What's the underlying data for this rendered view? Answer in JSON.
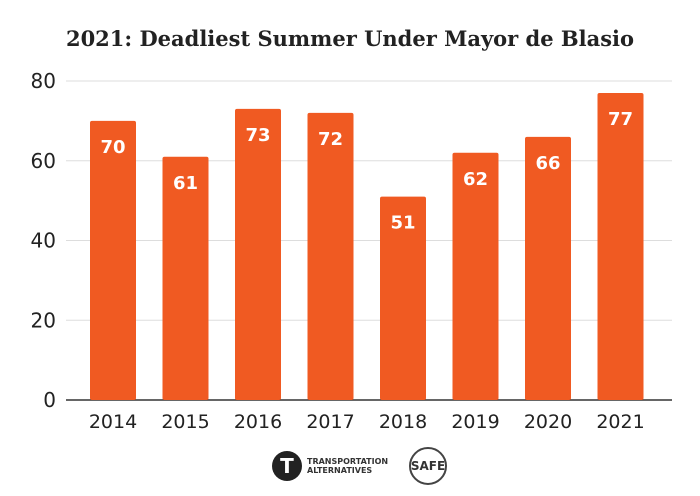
{
  "chart_data": {
    "type": "bar",
    "title": "2021: Deadliest Summer Under Mayor de Blasio",
    "categories": [
      "2014",
      "2015",
      "2016",
      "2017",
      "2018",
      "2019",
      "2020",
      "2021"
    ],
    "values": [
      70,
      61,
      73,
      72,
      51,
      62,
      66,
      77
    ],
    "ylim": [
      0,
      80
    ],
    "yticks": [
      0,
      20,
      40,
      60,
      80
    ],
    "xlabel": "",
    "ylabel": "",
    "grid": true,
    "data_labels": true,
    "bar_color": "#F05A22",
    "label_color": "#FFFFFF"
  },
  "logos": {
    "transportation_alternatives": "TRANSPORTATION ALTERNATIVES",
    "families_for_safe_streets": "FAMILIES FOR SAFE STREETS"
  }
}
